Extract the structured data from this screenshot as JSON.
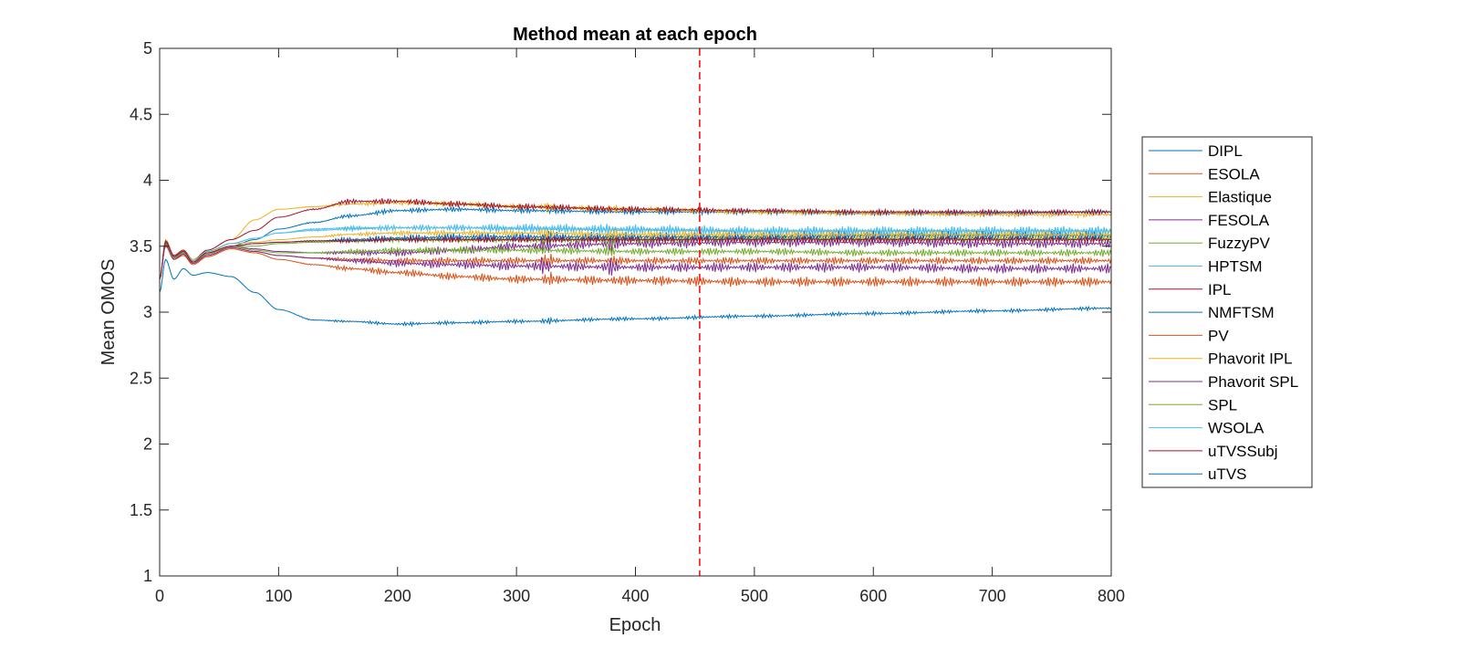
{
  "chart_data": {
    "type": "line",
    "title": "Method mean at each epoch",
    "xlabel": "Epoch",
    "ylabel": "Mean OMOS",
    "xlim": [
      0,
      800
    ],
    "ylim": [
      1,
      5
    ],
    "xticks": [
      0,
      100,
      200,
      300,
      400,
      500,
      600,
      700,
      800
    ],
    "yticks": [
      1,
      1.5,
      2,
      2.5,
      3,
      3.5,
      4,
      4.5,
      5
    ],
    "xtick_labels": [
      "0",
      "100",
      "200",
      "300",
      "400",
      "500",
      "600",
      "700",
      "800"
    ],
    "ytick_labels": [
      "1",
      "1.5",
      "2",
      "2.5",
      "3",
      "3.5",
      "4",
      "4.5",
      "5"
    ],
    "grid": false,
    "legend_position": "outside-right",
    "vline": {
      "x": 454,
      "style": "dashed",
      "color": "#FF0000"
    },
    "x_knots": [
      0,
      5,
      12,
      20,
      28,
      40,
      60,
      80,
      100,
      130,
      160,
      200,
      250,
      300,
      400,
      500,
      600,
      700,
      800
    ],
    "series": [
      {
        "name": "DIPL",
        "color": "#0072BD",
        "values": [
          3.25,
          3.53,
          3.42,
          3.45,
          3.38,
          3.45,
          3.5,
          3.55,
          3.63,
          3.68,
          3.73,
          3.77,
          3.78,
          3.77,
          3.76,
          3.76,
          3.75,
          3.75,
          3.76
        ],
        "osc": [
          0,
          0,
          0,
          0,
          0,
          0,
          0,
          0,
          0,
          0.005,
          0.015,
          0.02,
          0.02,
          0.02,
          0.02,
          0.02,
          0.02,
          0.02,
          0.02
        ]
      },
      {
        "name": "ESOLA",
        "color": "#D95319",
        "values": [
          3.25,
          3.5,
          3.4,
          3.43,
          3.36,
          3.42,
          3.48,
          3.45,
          3.4,
          3.36,
          3.33,
          3.3,
          3.27,
          3.25,
          3.24,
          3.23,
          3.23,
          3.23,
          3.23
        ],
        "osc": [
          0,
          0,
          0,
          0,
          0,
          0,
          0,
          0,
          0,
          0.005,
          0.02,
          0.03,
          0.03,
          0.035,
          0.04,
          0.04,
          0.04,
          0.04,
          0.04
        ]
      },
      {
        "name": "Elastique",
        "color": "#EDB120",
        "values": [
          3.25,
          3.55,
          3.43,
          3.47,
          3.4,
          3.47,
          3.55,
          3.7,
          3.78,
          3.8,
          3.82,
          3.83,
          3.82,
          3.8,
          3.78,
          3.76,
          3.75,
          3.74,
          3.74
        ],
        "osc": [
          0,
          0,
          0,
          0,
          0,
          0,
          0,
          0,
          0,
          0.005,
          0.015,
          0.02,
          0.02,
          0.02,
          0.02,
          0.02,
          0.02,
          0.02,
          0.02
        ]
      },
      {
        "name": "FESOLA",
        "color": "#7E2F8E",
        "values": [
          3.25,
          3.52,
          3.41,
          3.45,
          3.38,
          3.44,
          3.5,
          3.48,
          3.46,
          3.45,
          3.45,
          3.45,
          3.47,
          3.5,
          3.52,
          3.53,
          3.53,
          3.52,
          3.52
        ],
        "osc": [
          0,
          0,
          0,
          0,
          0,
          0,
          0,
          0,
          0,
          0.005,
          0.02,
          0.03,
          0.035,
          0.035,
          0.04,
          0.04,
          0.04,
          0.04,
          0.04
        ]
      },
      {
        "name": "FuzzyPV",
        "color": "#77AC30",
        "values": [
          3.25,
          3.52,
          3.41,
          3.45,
          3.38,
          3.45,
          3.5,
          3.5,
          3.52,
          3.53,
          3.54,
          3.55,
          3.55,
          3.55,
          3.55,
          3.56,
          3.56,
          3.56,
          3.56
        ],
        "osc": [
          0,
          0,
          0,
          0,
          0,
          0,
          0,
          0,
          0,
          0.005,
          0.015,
          0.02,
          0.025,
          0.025,
          0.03,
          0.03,
          0.03,
          0.03,
          0.03
        ]
      },
      {
        "name": "HPTSM",
        "color": "#4DBEEE",
        "values": [
          3.25,
          3.54,
          3.42,
          3.46,
          3.39,
          3.46,
          3.52,
          3.56,
          3.6,
          3.63,
          3.64,
          3.64,
          3.64,
          3.63,
          3.62,
          3.61,
          3.61,
          3.61,
          3.61
        ],
        "osc": [
          0,
          0,
          0,
          0,
          0,
          0,
          0,
          0,
          0,
          0.005,
          0.015,
          0.02,
          0.025,
          0.025,
          0.03,
          0.03,
          0.03,
          0.03,
          0.03
        ]
      },
      {
        "name": "IPL",
        "color": "#A2142F",
        "values": [
          3.25,
          3.54,
          3.43,
          3.47,
          3.39,
          3.47,
          3.55,
          3.62,
          3.72,
          3.78,
          3.84,
          3.84,
          3.82,
          3.8,
          3.78,
          3.77,
          3.76,
          3.76,
          3.76
        ],
        "osc": [
          0,
          0,
          0,
          0,
          0,
          0,
          0,
          0,
          0,
          0.005,
          0.02,
          0.025,
          0.025,
          0.025,
          0.025,
          0.02,
          0.02,
          0.02,
          0.02
        ]
      },
      {
        "name": "NMFTSM",
        "color": "#0072BD",
        "values": [
          3.25,
          3.53,
          3.42,
          3.46,
          3.38,
          3.45,
          3.5,
          3.52,
          3.53,
          3.54,
          3.55,
          3.56,
          3.57,
          3.57,
          3.57,
          3.57,
          3.58,
          3.58,
          3.58
        ],
        "osc": [
          0,
          0,
          0,
          0,
          0,
          0,
          0,
          0,
          0,
          0.005,
          0.02,
          0.03,
          0.035,
          0.04,
          0.04,
          0.04,
          0.045,
          0.045,
          0.045
        ]
      },
      {
        "name": "PV",
        "color": "#D95319",
        "values": [
          3.25,
          3.52,
          3.41,
          3.44,
          3.37,
          3.43,
          3.49,
          3.46,
          3.43,
          3.41,
          3.4,
          3.39,
          3.39,
          3.39,
          3.39,
          3.39,
          3.39,
          3.39,
          3.39
        ],
        "osc": [
          0,
          0,
          0,
          0,
          0,
          0,
          0,
          0,
          0,
          0.005,
          0.015,
          0.025,
          0.03,
          0.03,
          0.03,
          0.03,
          0.03,
          0.03,
          0.03
        ]
      },
      {
        "name": "Phavorit IPL",
        "color": "#EDB120",
        "values": [
          3.25,
          3.53,
          3.42,
          3.46,
          3.39,
          3.45,
          3.52,
          3.53,
          3.55,
          3.57,
          3.59,
          3.6,
          3.6,
          3.6,
          3.59,
          3.59,
          3.59,
          3.59,
          3.59
        ],
        "osc": [
          0,
          0,
          0,
          0,
          0,
          0,
          0,
          0,
          0,
          0.005,
          0.015,
          0.02,
          0.025,
          0.025,
          0.03,
          0.03,
          0.03,
          0.03,
          0.03
        ]
      },
      {
        "name": "Phavorit SPL",
        "color": "#7E2F8E",
        "values": [
          3.25,
          3.51,
          3.4,
          3.44,
          3.37,
          3.43,
          3.49,
          3.46,
          3.43,
          3.41,
          3.39,
          3.37,
          3.36,
          3.35,
          3.34,
          3.34,
          3.34,
          3.33,
          3.33
        ],
        "osc": [
          0,
          0,
          0,
          0,
          0,
          0,
          0,
          0,
          0,
          0.005,
          0.02,
          0.03,
          0.035,
          0.04,
          0.04,
          0.04,
          0.04,
          0.04,
          0.04
        ]
      },
      {
        "name": "SPL",
        "color": "#77AC30",
        "values": [
          3.25,
          3.52,
          3.41,
          3.45,
          3.38,
          3.44,
          3.5,
          3.47,
          3.45,
          3.45,
          3.46,
          3.47,
          3.47,
          3.47,
          3.46,
          3.46,
          3.45,
          3.45,
          3.45
        ],
        "osc": [
          0,
          0,
          0,
          0,
          0,
          0,
          0,
          0,
          0,
          0.005,
          0.02,
          0.025,
          0.03,
          0.03,
          0.03,
          0.03,
          0.03,
          0.03,
          0.03
        ]
      },
      {
        "name": "WSOLA",
        "color": "#4DBEEE",
        "values": [
          3.25,
          3.53,
          3.42,
          3.46,
          3.39,
          3.46,
          3.52,
          3.56,
          3.6,
          3.62,
          3.63,
          3.64,
          3.64,
          3.64,
          3.63,
          3.62,
          3.62,
          3.62,
          3.62
        ],
        "osc": [
          0,
          0,
          0,
          0,
          0,
          0,
          0,
          0,
          0,
          0.005,
          0.015,
          0.025,
          0.03,
          0.035,
          0.035,
          0.035,
          0.035,
          0.035,
          0.035
        ]
      },
      {
        "name": "uTVSSubj",
        "color": "#A2142F",
        "values": [
          3.25,
          3.53,
          3.42,
          3.46,
          3.38,
          3.45,
          3.5,
          3.52,
          3.53,
          3.54,
          3.54,
          3.55,
          3.55,
          3.55,
          3.55,
          3.55,
          3.55,
          3.55,
          3.55
        ],
        "osc": [
          0,
          0,
          0,
          0,
          0,
          0,
          0,
          0,
          0,
          0.005,
          0.015,
          0.02,
          0.025,
          0.025,
          0.025,
          0.025,
          0.025,
          0.025,
          0.025
        ]
      },
      {
        "name": "uTVS",
        "color": "#0072BD",
        "values": [
          3.15,
          3.4,
          3.25,
          3.33,
          3.28,
          3.3,
          3.27,
          3.15,
          3.02,
          2.94,
          2.93,
          2.91,
          2.92,
          2.93,
          2.95,
          2.97,
          2.99,
          3.01,
          3.03
        ],
        "osc": [
          0,
          0,
          0,
          0,
          0,
          0,
          0,
          0,
          0,
          0.005,
          0.01,
          0.015,
          0.015,
          0.015,
          0.015,
          0.015,
          0.015,
          0.015,
          0.015
        ]
      }
    ]
  }
}
